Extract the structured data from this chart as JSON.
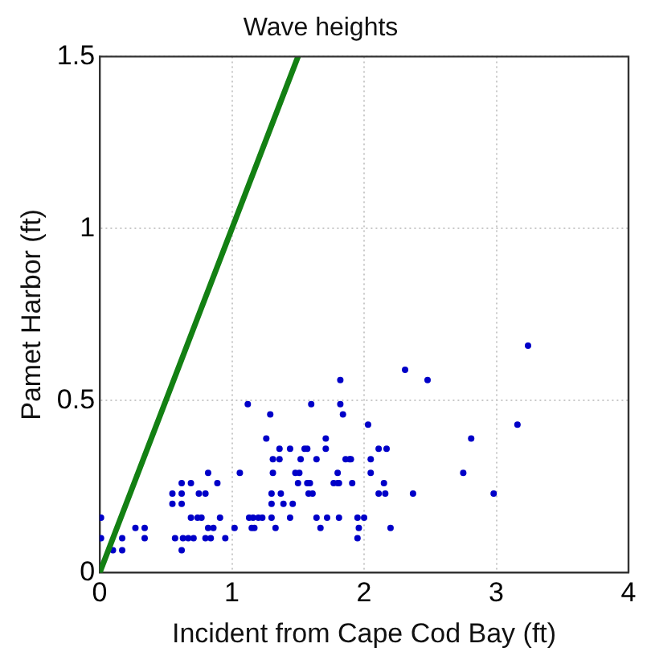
{
  "chart_data": {
    "type": "scatter",
    "title": "Wave heights",
    "xlabel": "Incident from Cape Cod Bay (ft)",
    "ylabel": "Pamet Harbor (ft)",
    "xlim": [
      0,
      4
    ],
    "xticks": [
      0,
      1,
      2,
      3,
      4
    ],
    "ylim": [
      0,
      1.5
    ],
    "yticks": [
      0,
      0.5,
      1,
      1.5
    ],
    "grid": true,
    "legend": false,
    "series": [
      {
        "type": "line",
        "color": "#138013",
        "marker": "none",
        "line_style": "solid",
        "x": [
          0,
          1.5
        ],
        "values": [
          0,
          1.5
        ]
      },
      {
        "color": "#0000c8",
        "marker": "circle",
        "x": [
          0.01,
          0.01,
          0.1,
          0.17,
          0.17,
          0.27,
          0.34,
          0.34,
          0.55,
          0.55,
          0.62,
          0.62,
          0.62,
          0.69,
          0.57,
          0.63,
          0.67,
          0.71,
          0.62,
          0.69,
          0.74,
          0.77,
          0.75,
          0.8,
          0.82,
          0.82,
          0.86,
          0.8,
          0.84,
          0.89,
          0.91,
          0.95,
          1.02,
          1.06,
          1.12,
          1.13,
          1.16,
          1.2,
          1.23,
          1.15,
          1.17,
          1.26,
          1.29,
          1.3,
          1.3,
          1.3,
          1.31,
          1.36,
          1.31,
          1.33,
          1.36,
          1.37,
          1.39,
          1.46,
          1.44,
          1.44,
          1.48,
          1.51,
          1.52,
          1.5,
          1.55,
          1.57,
          1.57,
          1.59,
          1.58,
          1.61,
          1.6,
          1.64,
          1.64,
          1.67,
          1.71,
          1.71,
          1.72,
          1.77,
          1.8,
          1.81,
          1.8,
          1.81,
          1.82,
          1.82,
          1.84,
          1.86,
          1.89,
          1.9,
          1.91,
          1.95,
          2.0,
          1.96,
          1.95,
          2.03,
          2.05,
          2.05,
          2.11,
          2.17,
          2.11,
          2.16,
          2.15,
          2.2,
          2.31,
          2.37,
          2.48,
          2.75,
          2.81,
          2.98,
          3.16,
          3.24
        ],
        "values": [
          0.16,
          0.1,
          0.065,
          0.1,
          0.065,
          0.13,
          0.13,
          0.1,
          0.23,
          0.2,
          0.23,
          0.2,
          0.26,
          0.26,
          0.1,
          0.1,
          0.1,
          0.1,
          0.065,
          0.16,
          0.16,
          0.16,
          0.23,
          0.23,
          0.29,
          0.13,
          0.13,
          0.1,
          0.1,
          0.26,
          0.16,
          0.1,
          0.13,
          0.29,
          0.49,
          0.16,
          0.16,
          0.16,
          0.16,
          0.13,
          0.13,
          0.39,
          0.46,
          0.23,
          0.2,
          0.16,
          0.33,
          0.33,
          0.29,
          0.13,
          0.36,
          0.23,
          0.2,
          0.2,
          0.36,
          0.16,
          0.29,
          0.29,
          0.33,
          0.26,
          0.36,
          0.36,
          0.26,
          0.26,
          0.23,
          0.23,
          0.49,
          0.33,
          0.16,
          0.13,
          0.39,
          0.36,
          0.16,
          0.26,
          0.26,
          0.26,
          0.29,
          0.16,
          0.56,
          0.49,
          0.46,
          0.33,
          0.33,
          0.33,
          0.26,
          0.16,
          0.16,
          0.13,
          0.1,
          0.43,
          0.33,
          0.29,
          0.36,
          0.36,
          0.23,
          0.23,
          0.26,
          0.13,
          0.59,
          0.23,
          0.56,
          0.29,
          0.39,
          0.23,
          0.43,
          0.66
        ]
      }
    ]
  }
}
